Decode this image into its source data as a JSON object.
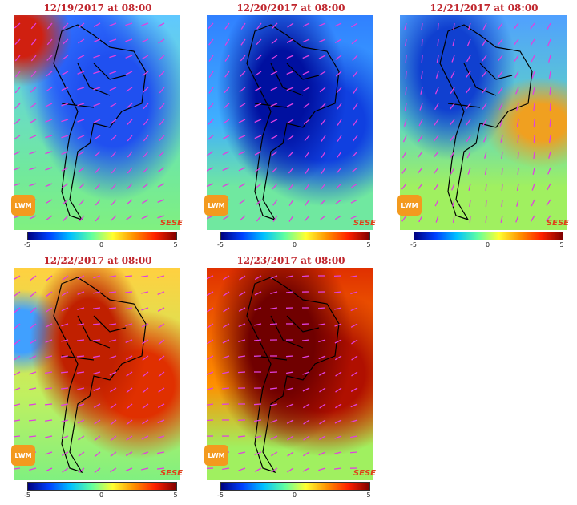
{
  "panels": [
    {
      "title": "12/19/2017 at 08:00"
    },
    {
      "title": "12/20/2017 at 08:00"
    },
    {
      "title": "12/21/2017 at 08:00"
    },
    {
      "title": "12/22/2017 at 08:00"
    },
    {
      "title": "12/23/2017 at 08:00"
    }
  ],
  "colorbar": {
    "ticks": [
      -5,
      0,
      5
    ]
  },
  "logos": {
    "left": "LWM",
    "right": "SESE"
  }
}
